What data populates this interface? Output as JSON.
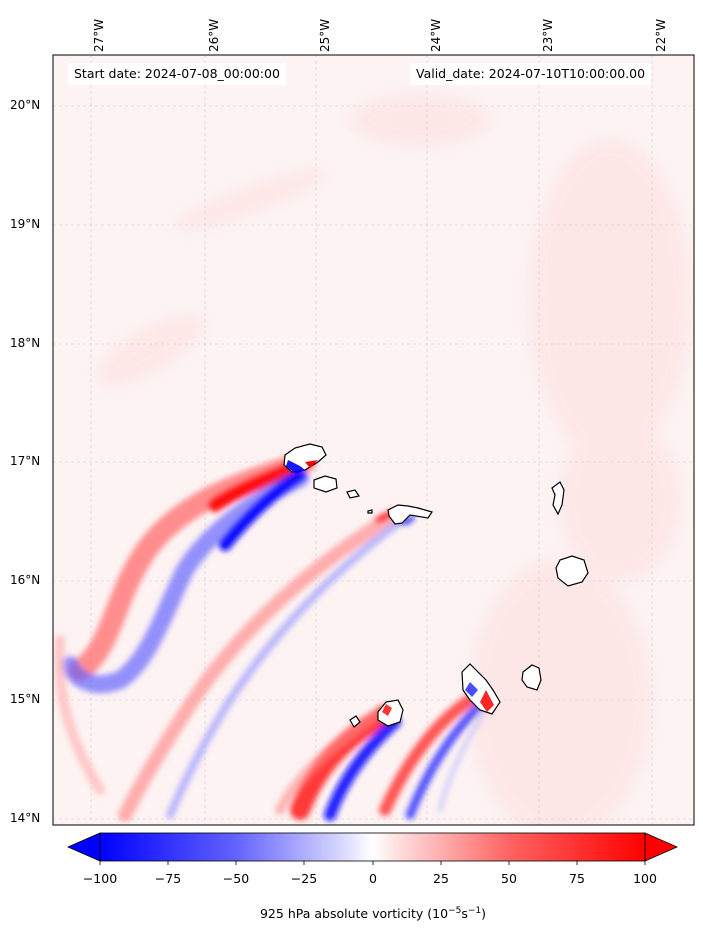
{
  "figure": {
    "start_label": "Start date: 2024-07-08_00:00:00",
    "valid_label": "Valid_date: 2024-07-10T10:00:00.00"
  },
  "map": {
    "longitudes": [
      "27°W",
      "26°W",
      "25°W",
      "24°W",
      "23°W",
      "22°W"
    ],
    "latitudes": [
      "20°N",
      "19°N",
      "18°N",
      "17°N",
      "16°N",
      "15°N",
      "14°N"
    ],
    "field_colors": {
      "positive": "#ff0000",
      "negative": "#0000ff",
      "background": "#fdf3f3",
      "coast": "#000000"
    }
  },
  "colorbar": {
    "ticks": [
      "−100",
      "−75",
      "−50",
      "−25",
      "0",
      "25",
      "50",
      "75",
      "100"
    ],
    "label_main": "925 hPa absolute vorticity (10",
    "label_exp1": "−5",
    "label_mid": "s",
    "label_exp2": "−1",
    "label_end": ")"
  }
}
